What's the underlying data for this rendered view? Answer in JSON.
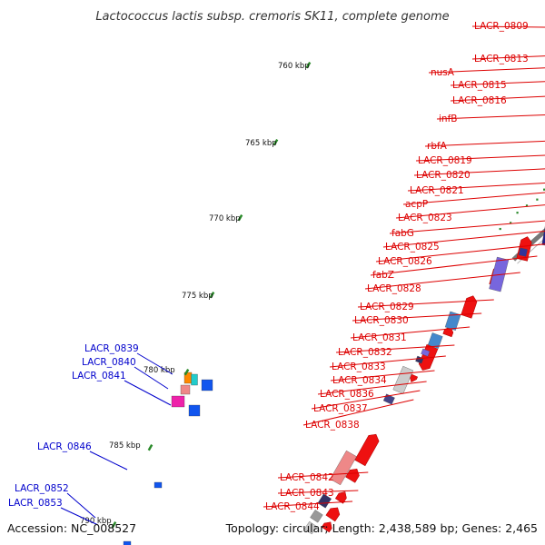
{
  "title": "Lactococcus lactis subsp. cremoris SK11, complete genome",
  "accession": "Accession: NC_008527",
  "topology": "Topology: circular; Length: 2,438,589 bp; Genes: 2,465",
  "colors": {
    "right_labels": "#dd0000",
    "left_labels": "#0000cc",
    "backbone": "#777777",
    "gc_skew": "#2a8a2a"
  },
  "kbp_ticks": [
    "760 kbp",
    "765 kbp",
    "770 kbp",
    "775 kbp",
    "780 kbp",
    "785 kbp",
    "790 kbp"
  ],
  "right_labels": [
    "LACR_0809",
    "LACR_0813",
    "nusA",
    "LACR_0815",
    "LACR_0816",
    "infB",
    "rbfA",
    "LACR_0819",
    "LACR_0820",
    "LACR_0821",
    "acpP",
    "LACR_0823",
    "fabG",
    "LACR_0825",
    "LACR_0826",
    "fabZ",
    "LACR_0828",
    "LACR_0829",
    "LACR_0830",
    "LACR_0831",
    "LACR_0832",
    "LACR_0833",
    "LACR_0834",
    "LACR_0836",
    "LACR_0837",
    "LACR_0838",
    "LACR_0842",
    "LACR_0843",
    "LACR_0844"
  ],
  "left_labels": [
    "LACR_0839",
    "LACR_0840",
    "LACR_0841",
    "LACR_0846",
    "LACR_0852",
    "LACR_0853"
  ]
}
